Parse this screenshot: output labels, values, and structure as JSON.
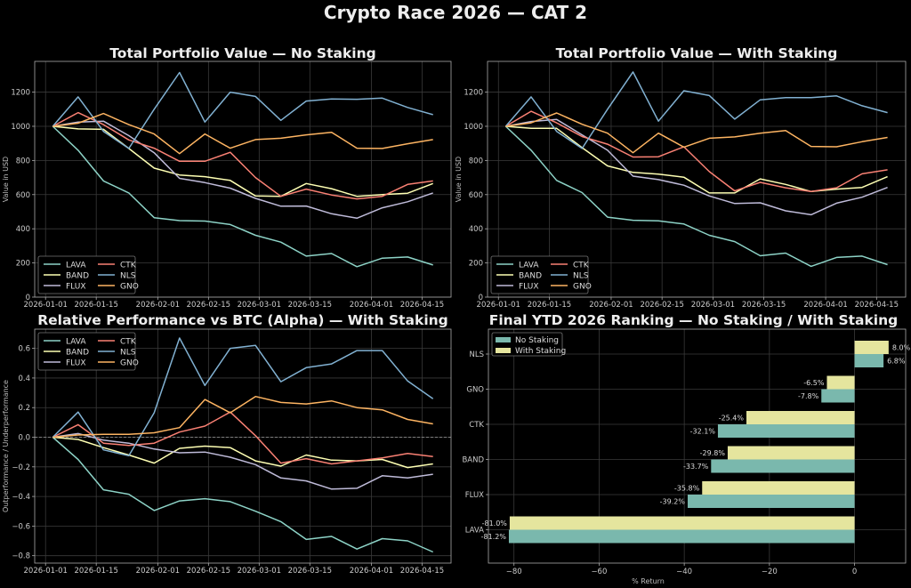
{
  "suptitle": "Crypto Race 2026 — CAT 2",
  "colors": {
    "LAVA": "#8dd3c7",
    "BAND": "#feffb3",
    "FLUX": "#bfbbd9",
    "CTK": "#fa8174",
    "NLS": "#81b1d2",
    "GNO": "#fdb462",
    "no_staking_bar": "#7ab8ad",
    "with_staking_bar": "#e5e59e"
  },
  "chart_data": [
    {
      "type": "line",
      "title": "Total Portfolio Value — No Staking",
      "xlabel": "",
      "ylabel": "Value in USD",
      "ylim": [
        0,
        1380
      ],
      "yticks": [
        0,
        200,
        400,
        600,
        800,
        1000,
        1200
      ],
      "xlim_days": [
        -3,
        112
      ],
      "xticks": [
        {
          "label": "2026-01-01",
          "day": 0
        },
        {
          "label": "2026-01-15",
          "day": 14
        },
        {
          "label": "2026-02-01",
          "day": 31
        },
        {
          "label": "2026-02-15",
          "day": 45
        },
        {
          "label": "2026-03-01",
          "day": 59
        },
        {
          "label": "2026-03-15",
          "day": 73
        },
        {
          "label": "2026-04-01",
          "day": 90
        },
        {
          "label": "2026-04-15",
          "day": 104
        }
      ],
      "x_days": [
        2,
        9,
        16,
        23,
        30,
        37,
        44,
        51,
        58,
        65,
        72,
        79,
        86,
        93,
        100,
        107
      ],
      "grid": true,
      "legend": "lower-left",
      "series": [
        {
          "name": "LAVA",
          "values": [
            1000,
            860,
            680,
            610,
            465,
            448,
            445,
            425,
            362,
            322,
            240,
            255,
            178,
            228,
            235,
            188
          ]
        },
        {
          "name": "BAND",
          "values": [
            1000,
            985,
            982,
            870,
            755,
            715,
            705,
            683,
            592,
            590,
            665,
            635,
            590,
            600,
            608,
            665
          ]
        },
        {
          "name": "FLUX",
          "values": [
            1000,
            1025,
            1030,
            945,
            845,
            695,
            670,
            638,
            578,
            532,
            533,
            488,
            462,
            523,
            558,
            610
          ]
        },
        {
          "name": "CTK",
          "values": [
            1000,
            1080,
            1010,
            920,
            872,
            795,
            795,
            848,
            700,
            590,
            632,
            598,
            575,
            590,
            660,
            680
          ]
        },
        {
          "name": "NLS",
          "values": [
            1000,
            1172,
            970,
            870,
            1100,
            1315,
            1025,
            1200,
            1175,
            1035,
            1148,
            1160,
            1158,
            1165,
            1110,
            1068
          ]
        },
        {
          "name": "GNO",
          "values": [
            1000,
            1018,
            1075,
            1010,
            955,
            840,
            955,
            872,
            922,
            930,
            950,
            965,
            872,
            870,
            898,
            922
          ]
        }
      ]
    },
    {
      "type": "line",
      "title": "Total Portfolio Value — With Staking",
      "xlabel": "",
      "ylabel": "Value in USD",
      "ylim": [
        0,
        1380
      ],
      "yticks": [
        0,
        200,
        400,
        600,
        800,
        1000,
        1200
      ],
      "xlim_days": [
        -3,
        112
      ],
      "xticks": [
        {
          "label": "2026-01-01",
          "day": 0
        },
        {
          "label": "2026-01-15",
          "day": 14
        },
        {
          "label": "2026-02-01",
          "day": 31
        },
        {
          "label": "2026-02-15",
          "day": 45
        },
        {
          "label": "2026-03-01",
          "day": 59
        },
        {
          "label": "2026-03-15",
          "day": 73
        },
        {
          "label": "2026-04-01",
          "day": 90
        },
        {
          "label": "2026-04-15",
          "day": 104
        }
      ],
      "x_days": [
        2,
        9,
        16,
        23,
        30,
        37,
        44,
        51,
        58,
        65,
        72,
        79,
        86,
        93,
        100,
        107
      ],
      "grid": true,
      "legend": "lower-left",
      "series": [
        {
          "name": "LAVA",
          "values": [
            1000,
            860,
            683,
            612,
            468,
            450,
            447,
            428,
            362,
            325,
            242,
            258,
            180,
            232,
            240,
            190
          ]
        },
        {
          "name": "BAND",
          "values": [
            1000,
            988,
            988,
            875,
            768,
            730,
            720,
            702,
            610,
            610,
            692,
            660,
            618,
            632,
            642,
            705
          ]
        },
        {
          "name": "FLUX",
          "values": [
            1000,
            1028,
            1040,
            950,
            860,
            708,
            688,
            655,
            592,
            548,
            552,
            505,
            482,
            550,
            585,
            642
          ]
        },
        {
          "name": "CTK",
          "values": [
            1000,
            1088,
            1020,
            940,
            895,
            820,
            822,
            880,
            735,
            622,
            672,
            640,
            618,
            640,
            722,
            745
          ]
        },
        {
          "name": "NLS",
          "values": [
            1000,
            1172,
            970,
            870,
            1100,
            1318,
            1030,
            1208,
            1180,
            1042,
            1155,
            1168,
            1168,
            1178,
            1120,
            1080
          ]
        },
        {
          "name": "GNO",
          "values": [
            1000,
            1020,
            1078,
            1012,
            960,
            845,
            960,
            878,
            930,
            938,
            960,
            975,
            882,
            880,
            910,
            935
          ]
        }
      ]
    },
    {
      "type": "line",
      "title": "Relative Performance vs BTC (Alpha) — With Staking",
      "xlabel": "",
      "ylabel": "Outperformance / Underperformance",
      "ylim": [
        -0.85,
        0.73
      ],
      "yticks": [
        -0.8,
        -0.6,
        -0.4,
        -0.2,
        0.0,
        0.2,
        0.4,
        0.6
      ],
      "ytick_labels": [
        "−0.8",
        "−0.6",
        "−0.4",
        "−0.2",
        "0.0",
        "0.2",
        "0.4",
        "0.6"
      ],
      "reference_line": 0,
      "xlim_days": [
        -3,
        112
      ],
      "xticks": [
        {
          "label": "2026-01-01",
          "day": 0
        },
        {
          "label": "2026-01-15",
          "day": 14
        },
        {
          "label": "2026-02-01",
          "day": 31
        },
        {
          "label": "2026-02-15",
          "day": 45
        },
        {
          "label": "2026-03-01",
          "day": 59
        },
        {
          "label": "2026-03-15",
          "day": 73
        },
        {
          "label": "2026-04-01",
          "day": 90
        },
        {
          "label": "2026-04-15",
          "day": 104
        }
      ],
      "x_days": [
        2,
        9,
        16,
        23,
        30,
        37,
        44,
        51,
        58,
        65,
        72,
        79,
        86,
        93,
        100,
        107
      ],
      "grid": true,
      "legend": "upper-left",
      "series": [
        {
          "name": "LAVA",
          "values": [
            0,
            -0.15,
            -0.355,
            -0.385,
            -0.495,
            -0.43,
            -0.415,
            -0.435,
            -0.5,
            -0.57,
            -0.69,
            -0.67,
            -0.755,
            -0.685,
            -0.7,
            -0.775
          ]
        },
        {
          "name": "BAND",
          "values": [
            0,
            -0.015,
            -0.07,
            -0.12,
            -0.175,
            -0.075,
            -0.06,
            -0.07,
            -0.16,
            -0.195,
            -0.12,
            -0.155,
            -0.16,
            -0.15,
            -0.205,
            -0.18
          ]
        },
        {
          "name": "FLUX",
          "values": [
            0,
            0.025,
            -0.02,
            -0.04,
            -0.08,
            -0.105,
            -0.1,
            -0.135,
            -0.185,
            -0.275,
            -0.295,
            -0.35,
            -0.345,
            -0.26,
            -0.275,
            -0.25
          ]
        },
        {
          "name": "CTK",
          "values": [
            0,
            0.085,
            -0.04,
            -0.055,
            -0.04,
            0.035,
            0.075,
            0.17,
            0.01,
            -0.175,
            -0.145,
            -0.18,
            -0.16,
            -0.14,
            -0.11,
            -0.13
          ]
        },
        {
          "name": "NLS",
          "values": [
            0,
            0.17,
            -0.085,
            -0.125,
            0.165,
            0.67,
            0.35,
            0.6,
            0.62,
            0.375,
            0.47,
            0.495,
            0.585,
            0.585,
            0.38,
            0.26
          ]
        },
        {
          "name": "GNO",
          "values": [
            0,
            0.015,
            0.02,
            0.02,
            0.03,
            0.065,
            0.255,
            0.165,
            0.275,
            0.235,
            0.225,
            0.245,
            0.2,
            0.185,
            0.12,
            0.09
          ]
        }
      ]
    },
    {
      "type": "bar",
      "orientation": "horizontal",
      "title": "Final YTD 2026 Ranking — No Staking / With Staking",
      "xlabel": "% Return",
      "ylabel": "",
      "xlim": [
        -86,
        12
      ],
      "xticks": [
        -80,
        -60,
        -40,
        -20,
        0
      ],
      "xtick_labels": [
        "−80",
        "−60",
        "−40",
        "−20",
        "0"
      ],
      "categories": [
        "NLS",
        "GNO",
        "CTK",
        "BAND",
        "FLUX",
        "LAVA"
      ],
      "grid": true,
      "legend": "upper-left",
      "series": [
        {
          "name": "No Staking",
          "values": [
            6.8,
            -7.8,
            -32.1,
            -33.7,
            -39.2,
            -81.2
          ],
          "labels": [
            "6.8%",
            "-7.8%",
            "-32.1%",
            "-33.7%",
            "-39.2%",
            "-81.2%"
          ]
        },
        {
          "name": "With Staking",
          "values": [
            8.0,
            -6.5,
            -25.4,
            -29.8,
            -35.8,
            -81.0
          ],
          "labels": [
            "8.0%",
            "-6.5%",
            "-25.4%",
            "-29.8%",
            "-35.8%",
            "-81.0%"
          ]
        }
      ]
    }
  ]
}
